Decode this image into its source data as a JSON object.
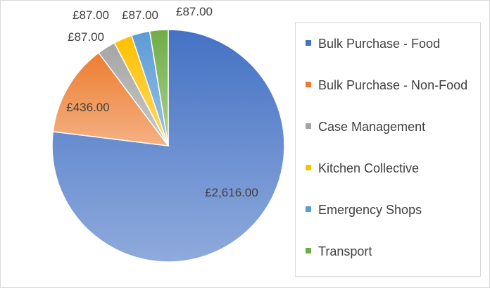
{
  "chart_data": {
    "type": "pie",
    "title": "",
    "categories": [
      "Bulk Purchase - Food",
      "Bulk Purchase - Non-Food",
      "Case Management",
      "Kitchen Collective",
      "Emergency Shops",
      "Transport"
    ],
    "values": [
      2616,
      436,
      87,
      87,
      87,
      87
    ],
    "data_labels": [
      "£2,616.00",
      "£436.00",
      "£87.00",
      "£87.00",
      "£87.00",
      "£87.00"
    ],
    "colors": [
      "#4472C4",
      "#ED7D31",
      "#A5A5A5",
      "#FFC000",
      "#5B9BD5",
      "#70AD47"
    ],
    "colors_light": [
      "#8FAADC",
      "#F4B183",
      "#C9C9C9",
      "#FFD966",
      "#9DC3E6",
      "#A9D18E"
    ],
    "legend_position": "right",
    "start_angle_deg": 0,
    "direction": "clockwise"
  }
}
